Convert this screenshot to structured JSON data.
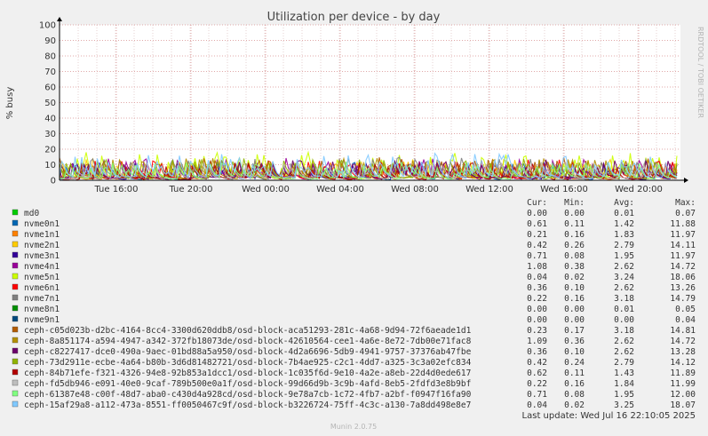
{
  "chart_data": {
    "type": "line",
    "title": "Utilization per device - by day",
    "ylabel": "% busy",
    "ylim": [
      0,
      100
    ],
    "yticks": [
      "0",
      "10",
      "20",
      "30",
      "40",
      "50",
      "60",
      "70",
      "80",
      "90",
      "100"
    ],
    "xticks": [
      "Tue 16:00",
      "Tue 20:00",
      "Wed 00:00",
      "Wed 04:00",
      "Wed 08:00",
      "Wed 12:00",
      "Wed 16:00",
      "Wed 20:00"
    ],
    "grid": true,
    "legend_header": {
      "cur": "Cur:",
      "min": "Min:",
      "avg": "Avg:",
      "max": "Max:"
    },
    "series": [
      {
        "name": "md0",
        "color": "#00cc00",
        "cur": "0.00",
        "min": "0.00",
        "avg": "0.01",
        "max": "0.07"
      },
      {
        "name": "nvme0n1",
        "color": "#0066b3",
        "cur": "0.61",
        "min": "0.11",
        "avg": "1.42",
        "max": "11.88"
      },
      {
        "name": "nvme1n1",
        "color": "#ff8000",
        "cur": "0.21",
        "min": "0.16",
        "avg": "1.83",
        "max": "11.97"
      },
      {
        "name": "nvme2n1",
        "color": "#ffcc00",
        "cur": "0.42",
        "min": "0.26",
        "avg": "2.79",
        "max": "14.11"
      },
      {
        "name": "nvme3n1",
        "color": "#330099",
        "cur": "0.71",
        "min": "0.08",
        "avg": "1.95",
        "max": "11.97"
      },
      {
        "name": "nvme4n1",
        "color": "#990099",
        "cur": "1.08",
        "min": "0.38",
        "avg": "2.62",
        "max": "14.72"
      },
      {
        "name": "nvme5n1",
        "color": "#ccff00",
        "cur": "0.04",
        "min": "0.02",
        "avg": "3.24",
        "max": "18.06"
      },
      {
        "name": "nvme6n1",
        "color": "#ff0000",
        "cur": "0.36",
        "min": "0.10",
        "avg": "2.62",
        "max": "13.26"
      },
      {
        "name": "nvme7n1",
        "color": "#808080",
        "cur": "0.22",
        "min": "0.16",
        "avg": "3.18",
        "max": "14.79"
      },
      {
        "name": "nvme8n1",
        "color": "#008f00",
        "cur": "0.00",
        "min": "0.00",
        "avg": "0.01",
        "max": "0.05"
      },
      {
        "name": "nvme9n1",
        "color": "#00487d",
        "cur": "0.00",
        "min": "0.00",
        "avg": "0.00",
        "max": "0.04"
      },
      {
        "name": "ceph-c05d023b-d2bc-4164-8cc4-3300d620ddb8/osd-block-aca51293-281c-4a68-9d94-72f6aeade1d1",
        "color": "#b35a00",
        "cur": "0.23",
        "min": "0.17",
        "avg": "3.18",
        "max": "14.81"
      },
      {
        "name": "ceph-8a851174-a594-4947-a342-372fb18073de/osd-block-42610564-cee1-4a6e-8e72-7db00e71fac8",
        "color": "#b38f00",
        "cur": "1.09",
        "min": "0.36",
        "avg": "2.62",
        "max": "14.72"
      },
      {
        "name": "ceph-c8227417-dce0-490a-9aec-01bd88a5a950/osd-block-4d2a6696-5db9-4941-9757-37376ab47fbe",
        "color": "#6b006b",
        "cur": "0.36",
        "min": "0.10",
        "avg": "2.62",
        "max": "13.28"
      },
      {
        "name": "ceph-73d2911e-ecbe-4a64-b80b-3d6d81482721/osd-block-7b4ae925-c2c1-4dd7-a325-3c3a02efc834",
        "color": "#8fb300",
        "cur": "0.42",
        "min": "0.24",
        "avg": "2.79",
        "max": "14.12"
      },
      {
        "name": "ceph-84b71efe-f321-4326-94e8-92b853a1dcc1/osd-block-1c035f6d-9e10-4a2e-a8eb-22d4d0ede617",
        "color": "#b30000",
        "cur": "0.62",
        "min": "0.11",
        "avg": "1.43",
        "max": "11.89"
      },
      {
        "name": "ceph-fd5db946-e091-40e0-9caf-789b500e0a1f/osd-block-99d66d9b-3c9b-4afd-8eb5-2fdfd3e8b9bf",
        "color": "#bebebe",
        "cur": "0.22",
        "min": "0.16",
        "avg": "1.84",
        "max": "11.99"
      },
      {
        "name": "ceph-61387e48-c00f-48d7-aba0-c430d4a928cd/osd-block-9e78a7cb-1c72-4fb7-a2bf-f0947f16fa90",
        "color": "#80ff80",
        "cur": "0.71",
        "min": "0.08",
        "avg": "1.95",
        "max": "12.00"
      },
      {
        "name": "ceph-15af29a8-a112-473a-8551-ff0050467c9f/osd-block-b3226724-75ff-4c3c-a130-7a8dd498e8e7",
        "color": "#80c9ff",
        "cur": "0.04",
        "min": "0.02",
        "avg": "3.25",
        "max": "18.07"
      }
    ]
  },
  "last_update": "Last update: Wed Jul 16 22:10:05 2025",
  "watermark": "RRDTOOL / TOBI OETIKER",
  "footer": "Munin 2.0.75"
}
